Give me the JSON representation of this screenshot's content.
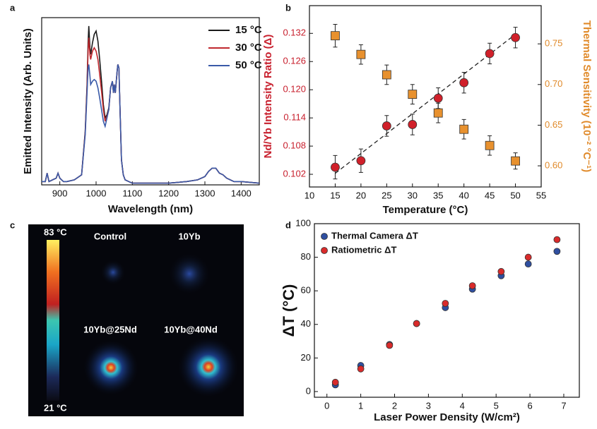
{
  "chart_data": [
    {
      "type": "line",
      "panel_label": "a",
      "xlabel": "Wavelength (nm)",
      "ylabel": "Emitted Intensity (Arb. Units)",
      "x": [
        850,
        860,
        865,
        870,
        880,
        890,
        895,
        900,
        905,
        910,
        920,
        940,
        960,
        970,
        975,
        978,
        980,
        983,
        985,
        990,
        995,
        1000,
        1005,
        1010,
        1015,
        1020,
        1025,
        1030,
        1035,
        1040,
        1045,
        1048,
        1050,
        1053,
        1055,
        1058,
        1060,
        1063,
        1066,
        1070,
        1075,
        1080,
        1090,
        1100,
        1150,
        1200,
        1250,
        1280,
        1300,
        1310,
        1320,
        1330,
        1340,
        1350,
        1360,
        1380,
        1400,
        1450
      ],
      "xlim": [
        850,
        1450
      ],
      "xticks": [
        900,
        1000,
        1100,
        1200,
        1300,
        1400
      ],
      "ylim": [
        0,
        1
      ],
      "legend": "upper right",
      "series": [
        {
          "name": "15 °C",
          "color": "#1a1a1a",
          "values": [
            0.02,
            0.02,
            0.07,
            0.02,
            0.03,
            0.04,
            0.07,
            0.04,
            0.03,
            0.02,
            0.02,
            0.03,
            0.06,
            0.32,
            0.6,
            0.85,
            0.95,
            0.82,
            0.78,
            0.85,
            0.9,
            0.92,
            0.86,
            0.75,
            0.62,
            0.48,
            0.4,
            0.42,
            0.46,
            0.58,
            0.62,
            0.55,
            0.6,
            0.55,
            0.6,
            0.68,
            0.72,
            0.7,
            0.45,
            0.15,
            0.06,
            0.03,
            0.02,
            0.01,
            0.01,
            0.01,
            0.02,
            0.03,
            0.05,
            0.08,
            0.1,
            0.1,
            0.07,
            0.06,
            0.04,
            0.02,
            0.02,
            0.01
          ]
        },
        {
          "name": "30 °C",
          "color": "#c0282e",
          "values": [
            0.02,
            0.02,
            0.07,
            0.02,
            0.03,
            0.04,
            0.07,
            0.04,
            0.03,
            0.02,
            0.02,
            0.03,
            0.06,
            0.31,
            0.58,
            0.8,
            0.88,
            0.78,
            0.75,
            0.8,
            0.82,
            0.8,
            0.75,
            0.66,
            0.56,
            0.45,
            0.38,
            0.41,
            0.45,
            0.58,
            0.62,
            0.55,
            0.6,
            0.55,
            0.6,
            0.68,
            0.72,
            0.7,
            0.45,
            0.15,
            0.06,
            0.03,
            0.02,
            0.01,
            0.01,
            0.01,
            0.02,
            0.03,
            0.05,
            0.08,
            0.1,
            0.1,
            0.07,
            0.06,
            0.04,
            0.02,
            0.02,
            0.01
          ]
        },
        {
          "name": "50 °C",
          "color": "#3a5aa8",
          "values": [
            0.02,
            0.02,
            0.07,
            0.02,
            0.03,
            0.04,
            0.07,
            0.04,
            0.03,
            0.02,
            0.02,
            0.03,
            0.06,
            0.3,
            0.55,
            0.7,
            0.72,
            0.65,
            0.6,
            0.62,
            0.63,
            0.62,
            0.58,
            0.52,
            0.45,
            0.38,
            0.35,
            0.4,
            0.45,
            0.58,
            0.62,
            0.55,
            0.6,
            0.55,
            0.6,
            0.68,
            0.72,
            0.7,
            0.45,
            0.15,
            0.06,
            0.03,
            0.02,
            0.01,
            0.01,
            0.01,
            0.02,
            0.03,
            0.05,
            0.08,
            0.1,
            0.1,
            0.07,
            0.06,
            0.04,
            0.02,
            0.02,
            0.01
          ]
        }
      ]
    },
    {
      "type": "scatter",
      "panel_label": "b",
      "xlabel": "Temperature (°C)",
      "ylabel": "Nd/Yb Intensity Ratio (Δ)",
      "ylabel_color": "#c8202e",
      "y2label": "Thermal Sensitivity (10⁻² °C⁻¹)",
      "y2label_color": "#e08a2a",
      "xlim": [
        10,
        55
      ],
      "xticks": [
        10,
        15,
        20,
        25,
        30,
        35,
        40,
        45,
        50,
        55
      ],
      "ylim": [
        0.0993,
        0.1379
      ],
      "yticks": [
        0.102,
        0.108,
        0.114,
        {
          "value": 0.12,
          "label": "0.120"
        },
        0.126,
        0.132
      ],
      "y2lim": [
        0.574,
        0.797
      ],
      "y2ticks": [
        {
          "value": 0.6,
          "label": "0.60"
        },
        0.65,
        {
          "value": 0.7,
          "label": "0.70"
        },
        0.75
      ],
      "x": [
        15,
        20,
        25,
        30,
        35,
        40,
        45,
        50
      ],
      "series": [
        {
          "color": "#d0202a",
          "marker": "circle",
          "values": [
            0.1035,
            0.1049,
            0.1123,
            0.1126,
            0.1182,
            0.1215,
            0.1277,
            0.1311
          ],
          "errors": [
            0.0025,
            0.0025,
            0.0022,
            0.0022,
            0.0022,
            0.0022,
            0.0022,
            0.0022
          ]
        },
        {
          "color": "#e8912e",
          "marker": "square",
          "axis": "y2",
          "values": [
            0.76,
            0.737,
            0.712,
            0.688,
            0.665,
            0.645,
            0.625,
            0.606
          ],
          "errors": [
            0.014,
            0.012,
            0.012,
            0.012,
            0.012,
            0.012,
            0.012,
            0.01
          ]
        }
      ],
      "fit_line": {
        "x": [
          15,
          50
        ],
        "values": [
          0.1022,
          0.1318
        ]
      }
    },
    {
      "type": "scatter",
      "panel_label": "d",
      "xlabel": "Laser Power Density (W/cm²)",
      "ylabel": "ΔT (°C)",
      "xlim": [
        -0.37,
        7.46
      ],
      "xticks": [
        0,
        1,
        2,
        3,
        4,
        5,
        6,
        7
      ],
      "ylim": [
        -3.4,
        100
      ],
      "yticks": [
        0,
        20,
        40,
        60,
        80,
        100
      ],
      "legend": "upper left",
      "x": [
        0.25,
        1.0,
        1.85,
        2.65,
        3.5,
        4.3,
        5.15,
        5.95,
        6.8
      ],
      "series": [
        {
          "name": "Thermal Camera ΔT",
          "color": "#2f4fa0",
          "marker": "circle",
          "values": [
            4,
            15.5,
            28,
            40.5,
            50,
            61,
            69,
            76,
            83.5
          ]
        },
        {
          "name": "Ratiometric ΔT",
          "color": "#d92b2b",
          "marker": "circle",
          "values": [
            5.5,
            13.5,
            27.5,
            40.5,
            52.5,
            63,
            71.5,
            80,
            90.5
          ]
        }
      ]
    }
  ],
  "image_panel": {
    "panel_label": "c",
    "scale_max": "83 °C",
    "scale_min": "21 °C",
    "samples": [
      "Control",
      "10Yb",
      "10Yb@25Nd",
      "10Yb@40Nd"
    ]
  }
}
